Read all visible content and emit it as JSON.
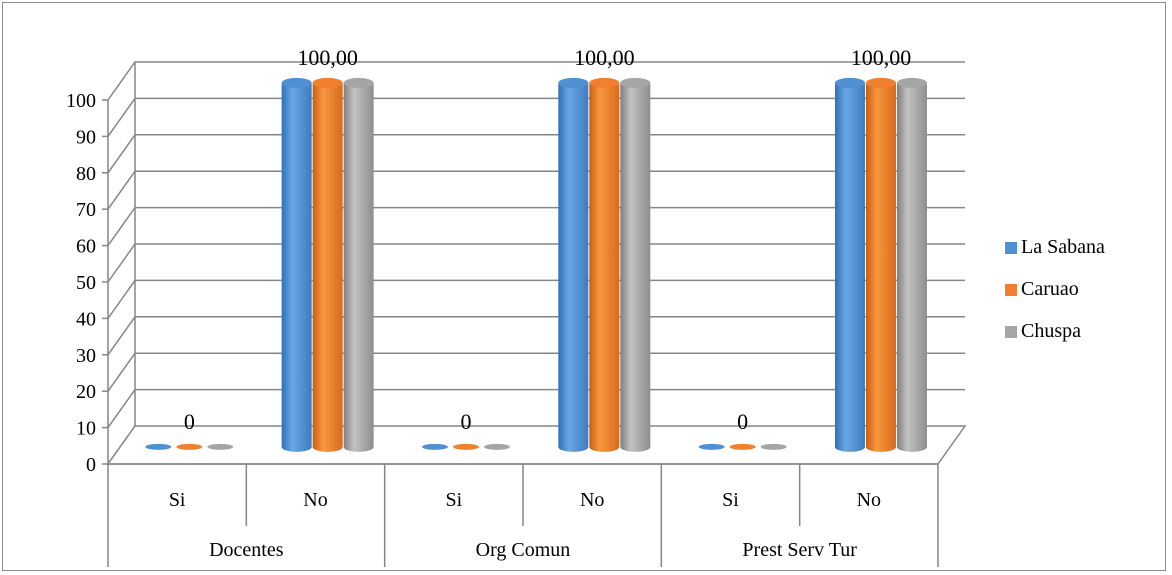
{
  "chart_data": {
    "type": "bar",
    "title": "",
    "xlabel": "",
    "ylabel": "",
    "ylim": [
      0,
      100
    ],
    "yticks": [
      0,
      10,
      20,
      30,
      40,
      50,
      60,
      70,
      80,
      90,
      100
    ],
    "grid": true,
    "three_d": true,
    "legend_position": "right",
    "groups": [
      {
        "name": "Docentes",
        "categories": [
          "Si",
          "No"
        ]
      },
      {
        "name": "Org Comun",
        "categories": [
          "Si",
          "No"
        ]
      },
      {
        "name": "Prest Serv Tur",
        "categories": [
          "Si",
          "No"
        ]
      }
    ],
    "categories": [
      "Si",
      "No",
      "Si",
      "No",
      "Si",
      "No"
    ],
    "series": [
      {
        "name": "La Sabana",
        "color": "#4f90d2",
        "values": [
          0,
          100,
          0,
          100,
          0,
          100
        ]
      },
      {
        "name": "Caruao",
        "color": "#f07f2e",
        "values": [
          0,
          100,
          0,
          100,
          0,
          100
        ]
      },
      {
        "name": "Chuspa",
        "color": "#a5a5a5",
        "values": [
          0,
          100,
          0,
          100,
          0,
          100
        ]
      }
    ],
    "data_labels": [
      "0",
      "100,00",
      "0",
      "100,00",
      "0",
      "100,00"
    ]
  }
}
